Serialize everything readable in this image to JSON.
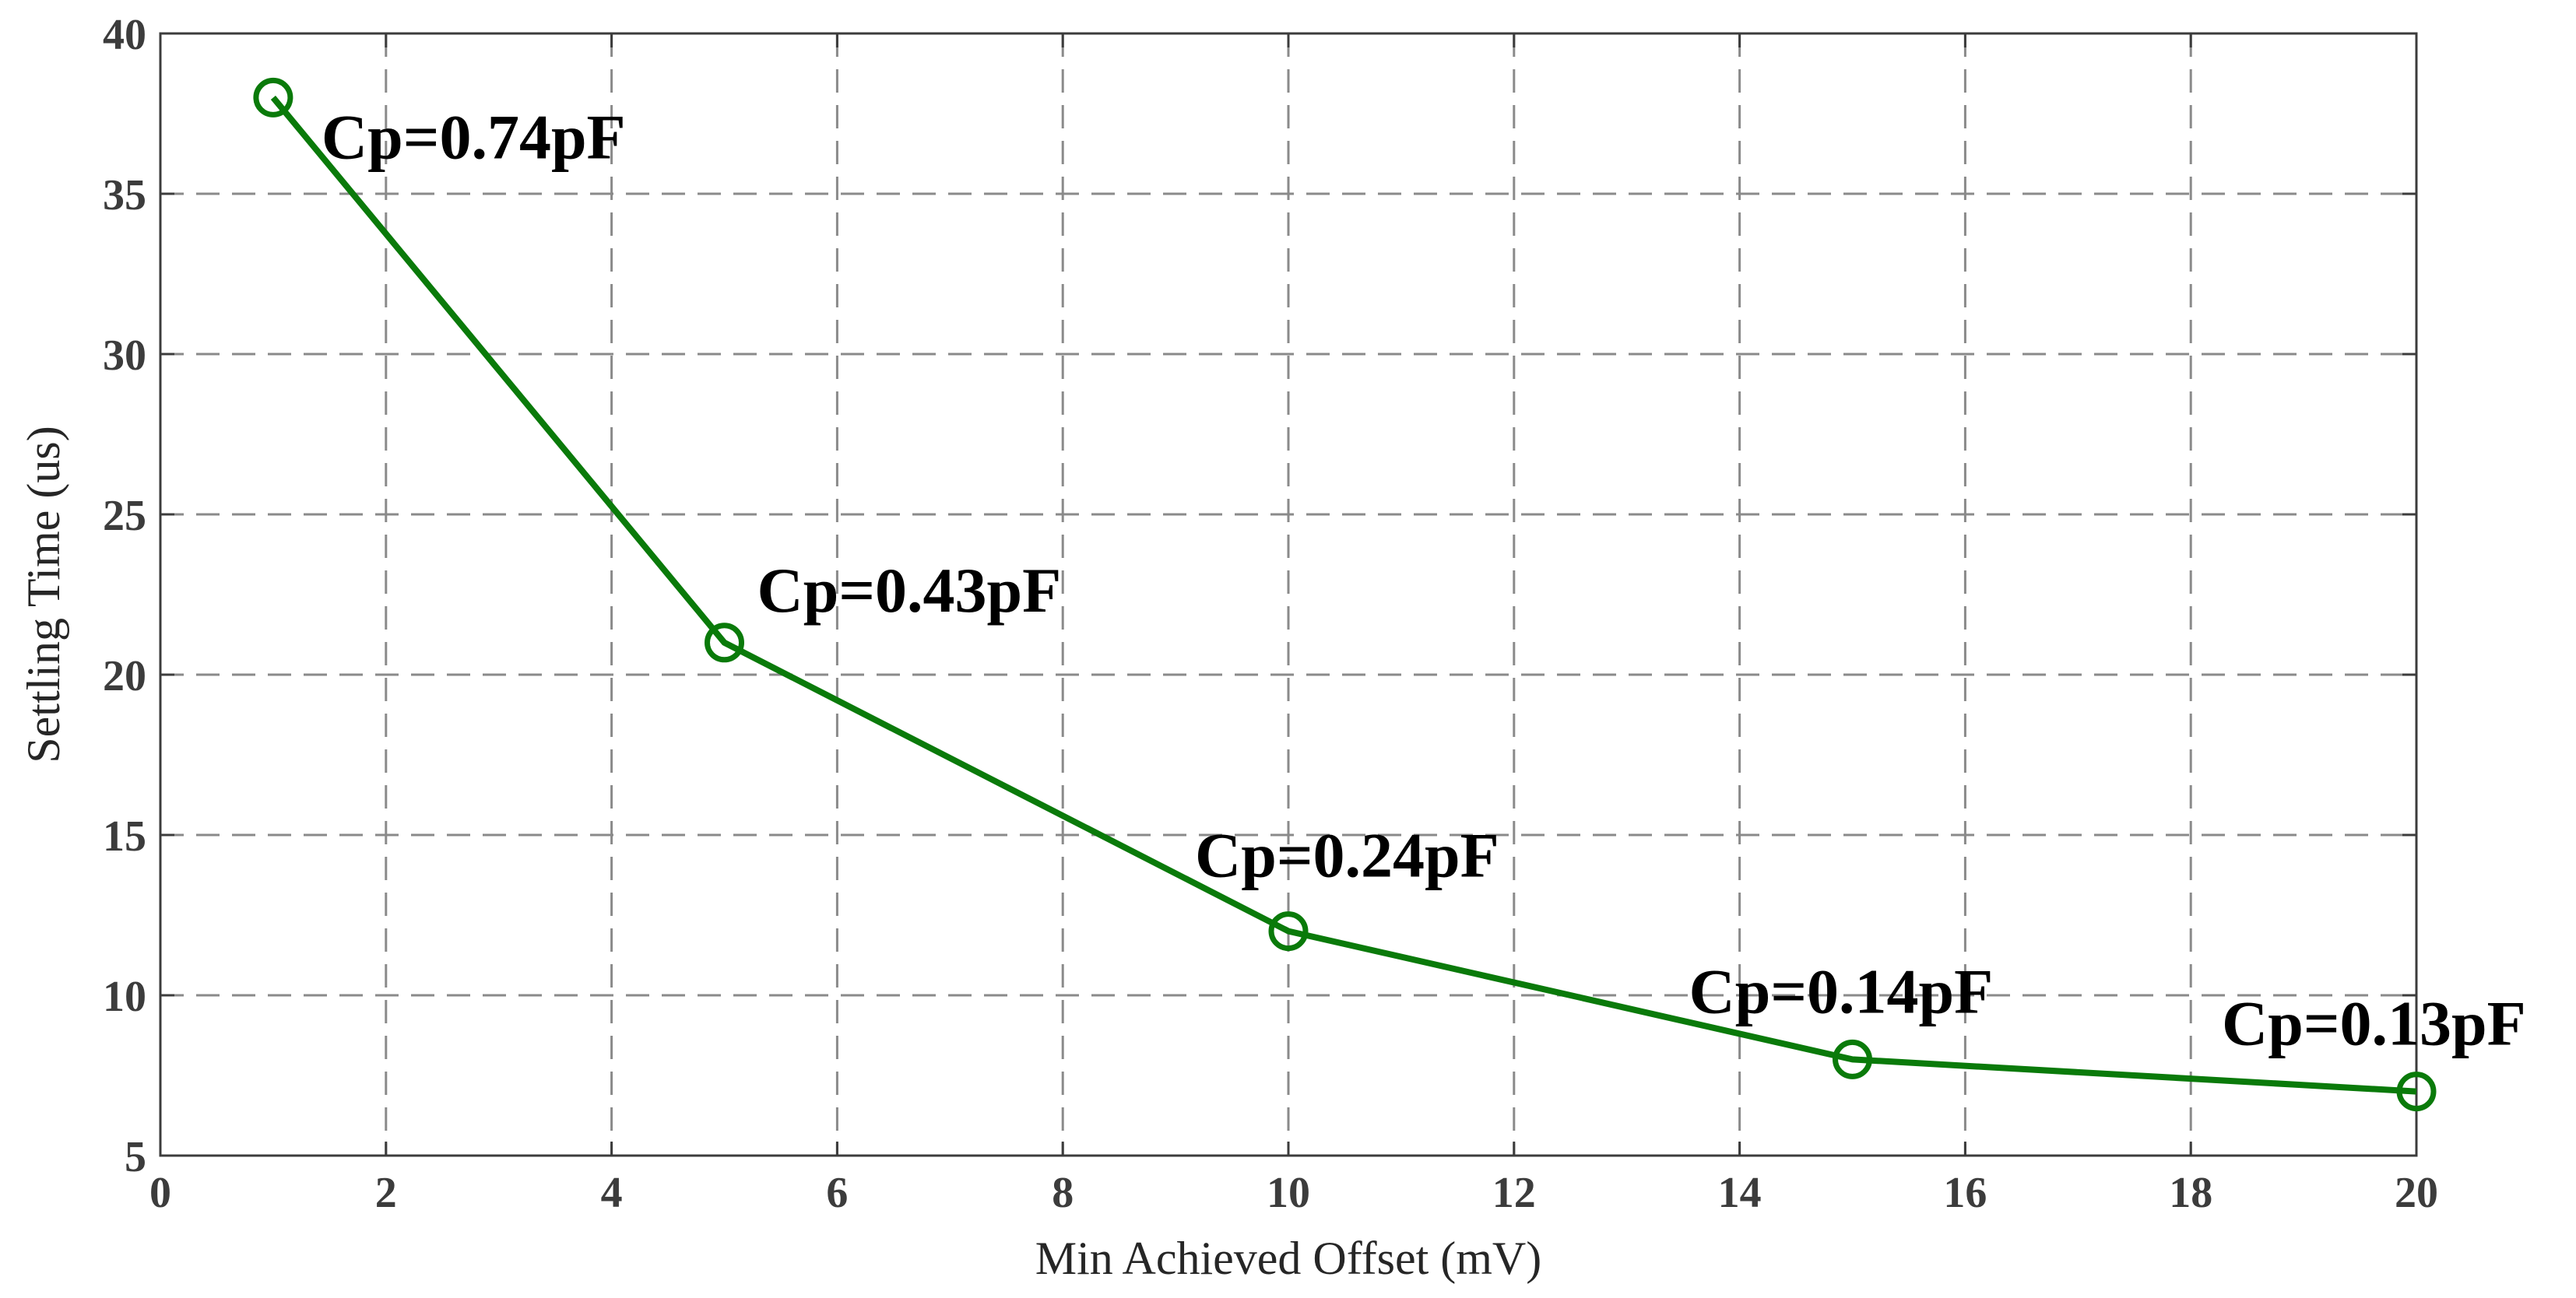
{
  "chart_data": {
    "type": "line",
    "xlabel": "Min Achieved Offset (mV)",
    "ylabel": "Settling Time (us)",
    "xlim": [
      0,
      20
    ],
    "ylim": [
      5,
      40
    ],
    "xticks": [
      "0",
      "2",
      "4",
      "6",
      "8",
      "10",
      "12",
      "14",
      "16",
      "18",
      "20"
    ],
    "yticks": [
      "5",
      "10",
      "15",
      "20",
      "25",
      "30",
      "35",
      "40"
    ],
    "grid": true,
    "line_color": "#0a7a0a",
    "series": [
      {
        "x": [
          1,
          5,
          10,
          15,
          20
        ],
        "y": [
          38,
          21,
          12,
          8,
          7
        ],
        "labels": [
          "Cp=0.74pF",
          "Cp=0.43pF",
          "Cp=0.24pF",
          "Cp=0.14pF",
          "Cp=0.13pF"
        ]
      }
    ]
  }
}
